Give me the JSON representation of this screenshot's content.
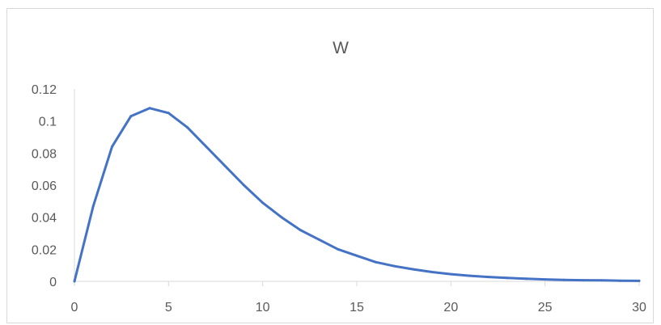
{
  "chart_data": {
    "type": "line",
    "title": "W",
    "xlabel": "",
    "ylabel": "",
    "xlim": [
      0,
      30
    ],
    "ylim": [
      0,
      0.12
    ],
    "x_ticks": [
      "0",
      "5",
      "10",
      "15",
      "20",
      "25",
      "30"
    ],
    "y_ticks": [
      "0",
      "0.02",
      "0.04",
      "0.06",
      "0.08",
      "0.1",
      "0.12"
    ],
    "grid": false,
    "legend": "none",
    "series": [
      {
        "color": "#4472c4",
        "x": [
          0,
          1,
          2,
          3,
          4,
          5,
          6,
          7,
          8,
          9,
          10,
          11,
          12,
          13,
          14,
          15,
          16,
          17,
          18,
          19,
          20,
          21,
          22,
          23,
          24,
          25,
          26,
          27,
          28,
          29,
          30
        ],
        "y": [
          0,
          0.047,
          0.084,
          0.103,
          0.108,
          0.105,
          0.096,
          0.084,
          0.072,
          0.06,
          0.049,
          0.04,
          0.032,
          0.026,
          0.02,
          0.016,
          0.012,
          0.0095,
          0.0075,
          0.0058,
          0.0045,
          0.0035,
          0.0027,
          0.0021,
          0.0016,
          0.0012,
          0.0009,
          0.0007,
          0.0006,
          0.0004,
          0.0003
        ]
      }
    ]
  }
}
